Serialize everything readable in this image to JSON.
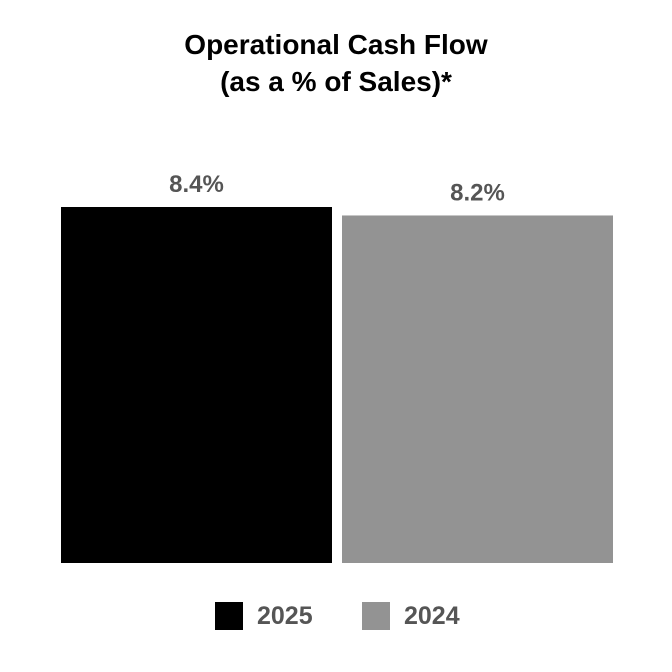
{
  "chart_data": {
    "type": "bar",
    "title": "Operational Cash Flow",
    "subtitle": "(as a % of Sales)*",
    "categories": [
      "2025",
      "2024"
    ],
    "values": [
      8.4,
      8.2
    ],
    "value_labels": [
      "8.4%",
      "8.2%"
    ],
    "colors": [
      "#000000",
      "#939393"
    ],
    "label_color": "#555555",
    "ylim": [
      0,
      8.4
    ],
    "grid": false,
    "legend_position": "bottom-center",
    "legend": [
      {
        "label": "2025",
        "color": "#000000"
      },
      {
        "label": "2024",
        "color": "#939393"
      }
    ]
  }
}
